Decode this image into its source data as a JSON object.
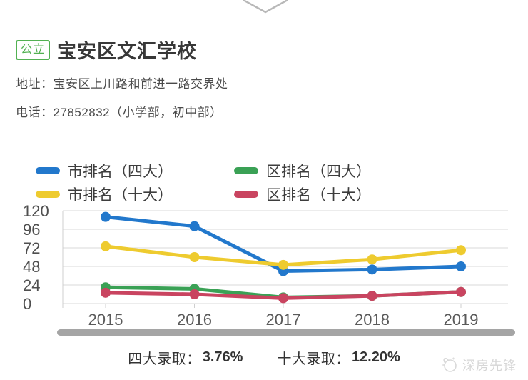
{
  "header": {
    "badge": "公立",
    "badge_color": "#52b152",
    "title": "宝安区文汇学校"
  },
  "info": {
    "address_label": "地址：",
    "address": "宝安区上川路和前进一路交界处",
    "phone_label": "电话：",
    "phone": "27852832（小学部，初中部）"
  },
  "chart_data": {
    "type": "line",
    "x": [
      "2015",
      "2016",
      "2017",
      "2018",
      "2019"
    ],
    "series": [
      {
        "name": "市排名（四大）",
        "color": "#2278cc",
        "values": [
          112,
          100,
          42,
          44,
          48
        ]
      },
      {
        "name": "市排名（十大）",
        "color": "#eecb2f",
        "values": [
          74,
          60,
          50,
          57,
          69
        ]
      },
      {
        "name": "区排名（四大）",
        "color": "#3aa155",
        "values": [
          21,
          19,
          8,
          10,
          15
        ]
      },
      {
        "name": "区排名（十大）",
        "color": "#c94460",
        "values": [
          14,
          12,
          7,
          10,
          15
        ]
      }
    ],
    "ylim": [
      0,
      120
    ],
    "yticks": [
      0,
      24,
      48,
      72,
      96,
      120
    ],
    "grid": true,
    "legend_position": "top",
    "grid_color": "#d8d8d8",
    "axis_color": "#cfcfcf",
    "tick_label_color": "#4f4f4f"
  },
  "stats": {
    "item1_label": "四大录取：",
    "item1_value": "3.76%",
    "item2_label": "十大录取：",
    "item2_value": "12.20%"
  },
  "watermark": {
    "text": "深房先锋"
  }
}
